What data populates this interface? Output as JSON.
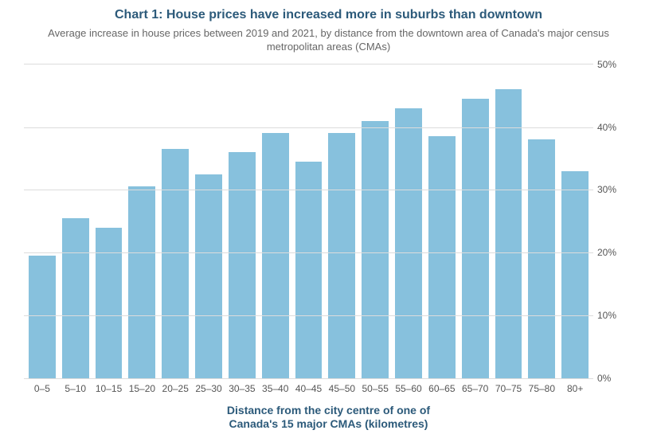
{
  "chart": {
    "type": "bar",
    "title": "Chart 1: House prices have increased more in suburbs than downtown",
    "subtitle": "Average increase in house prices between 2019 and 2021, by distance from the downtown area of Canada's major census metropolitan areas (CMAs)",
    "x_axis_title_line1": "Distance from the city centre of one of",
    "x_axis_title_line2": "Canada's 15 major CMAs (kilometres)",
    "title_color": "#2c5a7a",
    "title_fontsize": 16,
    "subtitle_color": "#666666",
    "subtitle_fontsize": 13,
    "bar_color": "#87c1dd",
    "background_color": "#ffffff",
    "grid_color": "#dcdcdc",
    "axis_label_color": "#555555",
    "axis_label_fontsize": 12,
    "ylim": [
      0,
      50
    ],
    "ytick_step": 10,
    "y_ticks": [
      {
        "value": 0,
        "label": "0%"
      },
      {
        "value": 10,
        "label": "10%"
      },
      {
        "value": 20,
        "label": "20%"
      },
      {
        "value": 30,
        "label": "30%"
      },
      {
        "value": 40,
        "label": "40%"
      },
      {
        "value": 50,
        "label": "50%"
      }
    ],
    "categories": [
      "0–5",
      "5–10",
      "10–15",
      "15–20",
      "20–25",
      "25–30",
      "30–35",
      "35–40",
      "40–45",
      "45–50",
      "50–55",
      "55–60",
      "60–65",
      "65–70",
      "70–75",
      "75–80",
      "80+"
    ],
    "values": [
      19.5,
      25.5,
      24.0,
      30.5,
      36.5,
      32.5,
      36.0,
      39.0,
      34.5,
      39.0,
      41.0,
      43.0,
      38.5,
      44.5,
      46.0,
      38.0,
      33.0
    ]
  }
}
